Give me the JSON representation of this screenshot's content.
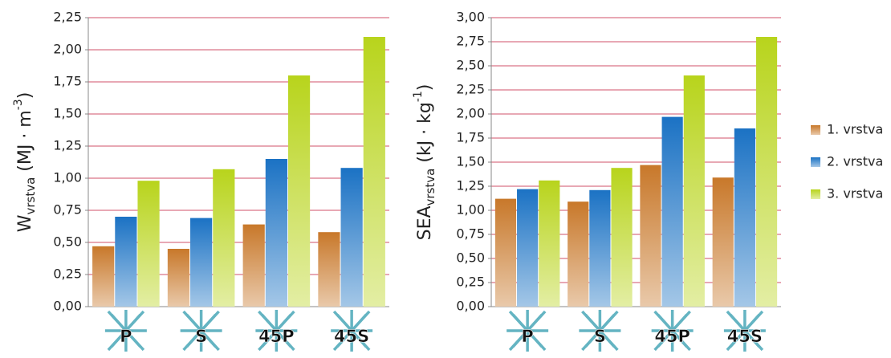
{
  "chart_data": [
    {
      "type": "bar",
      "ylabel": {
        "main": "W",
        "sub": "vrstva",
        "rest": " (MJ · m",
        "sup": "-3",
        "end": ")"
      },
      "categories": [
        "P",
        "S",
        "45P",
        "45S"
      ],
      "series": [
        {
          "values": [
            0.47,
            0.45,
            0.64,
            0.58
          ]
        },
        {
          "values": [
            0.7,
            0.69,
            1.15,
            1.08
          ]
        },
        {
          "values": [
            0.98,
            1.07,
            1.8,
            2.1
          ]
        }
      ],
      "ylim": [
        0,
        2.25
      ],
      "yticks": [
        {
          "value": 0,
          "label": "0,00"
        },
        {
          "value": 0.25,
          "label": "0,25"
        },
        {
          "value": 0.5,
          "label": "0,50"
        },
        {
          "value": 0.75,
          "label": "0,75"
        },
        {
          "value": 1,
          "label": "1,00"
        },
        {
          "value": 1.25,
          "label": "1,25"
        },
        {
          "value": 1.5,
          "label": "1,50"
        },
        {
          "value": 1.75,
          "label": "1,75"
        },
        {
          "value": 2,
          "label": "2,00"
        },
        {
          "value": 2.25,
          "label": "2,25"
        }
      ],
      "grid": true
    },
    {
      "type": "bar",
      "ylabel": {
        "main": "SEA",
        "sub": "vrstva",
        "rest": " (kJ · kg",
        "sup": "-1",
        "end": ")"
      },
      "categories": [
        "P",
        "S",
        "45P",
        "45S"
      ],
      "series": [
        {
          "values": [
            1.12,
            1.09,
            1.47,
            1.34
          ]
        },
        {
          "values": [
            1.22,
            1.21,
            1.97,
            1.85
          ]
        },
        {
          "values": [
            1.31,
            1.44,
            2.4,
            2.8
          ]
        }
      ],
      "ylim": [
        0,
        3
      ],
      "yticks": [
        {
          "value": 0,
          "label": "0,00"
        },
        {
          "value": 0.25,
          "label": "0,25"
        },
        {
          "value": 0.5,
          "label": "0,50"
        },
        {
          "value": 0.75,
          "label": "0,75"
        },
        {
          "value": 1,
          "label": "1,00"
        },
        {
          "value": 1.25,
          "label": "1,25"
        },
        {
          "value": 1.5,
          "label": "1,50"
        },
        {
          "value": 1.75,
          "label": "1,75"
        },
        {
          "value": 2,
          "label": "2,00"
        },
        {
          "value": 2.25,
          "label": "2,25"
        },
        {
          "value": 2.5,
          "label": "2,50"
        },
        {
          "value": 2.75,
          "label": "2,75"
        },
        {
          "value": 3,
          "label": "3,00"
        }
      ],
      "grid": true
    }
  ],
  "legend": [
    {
      "name": "1. vrstva",
      "color": "#c8782a"
    },
    {
      "name": "2. vrstva",
      "color": "#1b72c4"
    },
    {
      "name": "3. vrstva",
      "color": "#b8d41c"
    }
  ]
}
